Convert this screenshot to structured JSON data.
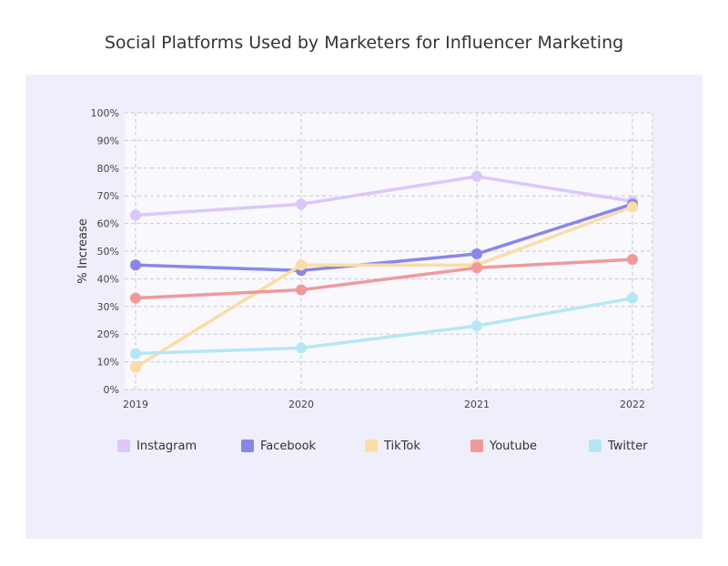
{
  "chart_data": {
    "type": "line",
    "title": "Social Platforms Used by Marketers for Influencer Marketing",
    "xlabel": "",
    "ylabel": "% Increase",
    "x": [
      "2019",
      "2020",
      "2021",
      "2022"
    ],
    "ylim": [
      0,
      100
    ],
    "yticks": [
      "0%",
      "10%",
      "20%",
      "30%",
      "40%",
      "50%",
      "60%",
      "70%",
      "80%",
      "90%",
      "100%"
    ],
    "grid": true,
    "legend_position": "bottom",
    "series": [
      {
        "name": "Instagram",
        "values": [
          63,
          67,
          77,
          68
        ],
        "color": "#dcc7fb"
      },
      {
        "name": "Facebook",
        "values": [
          45,
          43,
          49,
          67
        ],
        "color": "#8a86e8"
      },
      {
        "name": "TikTok",
        "values": [
          8,
          45,
          45,
          66
        ],
        "color": "#fbdca6"
      },
      {
        "name": "Youtube",
        "values": [
          33,
          36,
          44,
          47
        ],
        "color": "#f0999a"
      },
      {
        "name": "Twitter",
        "values": [
          13,
          15,
          23,
          33
        ],
        "color": "#b5e6f6"
      }
    ]
  },
  "colors": {
    "panel_background": "#efeffb",
    "plot_background": "#f8f8fd"
  }
}
